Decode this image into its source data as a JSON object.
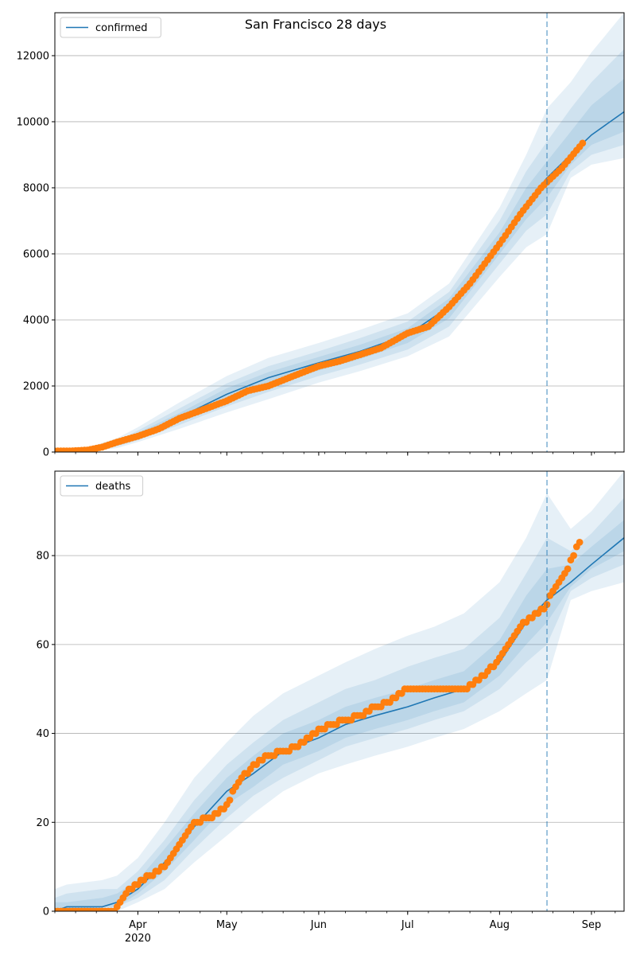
{
  "title": "San Francisco 28 days",
  "colors": {
    "line": "#1f77b4",
    "band": "#1f77b4",
    "observed": "#ff7f0e",
    "grid": "#b0b0b0"
  },
  "x_axis": {
    "tick_labels": [
      "Apr",
      "May",
      "Jun",
      "Jul",
      "Aug",
      "Sep"
    ],
    "tick_dates": [
      "2020-04-01",
      "2020-05-01",
      "2020-06-01",
      "2020-07-01",
      "2020-08-01",
      "2020-09-01"
    ],
    "year_label": "2020",
    "range": [
      "2020-03-04",
      "2020-09-12"
    ]
  },
  "chart_data": [
    {
      "type": "line",
      "legend_placement": "top-left",
      "legend": "confirmed",
      "ylim": [
        0,
        13300
      ],
      "yticks": [
        0,
        2000,
        4000,
        6000,
        8000,
        10000,
        12000
      ],
      "grid": "horizontal",
      "forecast_start": "2020-08-17",
      "median": {
        "x": [
          "2020-03-04",
          "2020-03-15",
          "2020-03-25",
          "2020-04-01",
          "2020-04-15",
          "2020-05-01",
          "2020-05-15",
          "2020-06-01",
          "2020-06-15",
          "2020-07-01",
          "2020-07-15",
          "2020-08-01",
          "2020-08-10",
          "2020-08-17",
          "2020-08-25",
          "2020-09-01",
          "2020-09-12"
        ],
        "y": [
          20,
          60,
          250,
          500,
          1050,
          1750,
          2250,
          2700,
          3050,
          3550,
          4400,
          6300,
          7500,
          8300,
          9000,
          9600,
          10300
        ]
      },
      "bands": [
        {
          "lower": [
            0,
            10,
            120,
            300,
            700,
            1200,
            1600,
            2100,
            2450,
            2900,
            3500,
            5300,
            6200,
            6600,
            8300,
            8700,
            8900
          ],
          "upper": [
            60,
            140,
            420,
            750,
            1500,
            2300,
            2850,
            3300,
            3700,
            4200,
            5100,
            7400,
            9000,
            10400,
            11200,
            12100,
            13300
          ]
        },
        {
          "lower": [
            5,
            25,
            170,
            360,
            820,
            1380,
            1820,
            2300,
            2650,
            3100,
            3800,
            5700,
            6700,
            7200,
            8500,
            9000,
            9300
          ],
          "upper": [
            45,
            110,
            340,
            650,
            1320,
            2080,
            2600,
            3050,
            3450,
            3950,
            4850,
            7000,
            8500,
            9400,
            10400,
            11200,
            12200
          ]
        },
        {
          "lower": [
            10,
            40,
            210,
            420,
            920,
            1530,
            2000,
            2470,
            2820,
            3300,
            4050,
            6000,
            7050,
            7700,
            8700,
            9300,
            9700
          ],
          "upper": [
            35,
            85,
            290,
            580,
            1180,
            1930,
            2420,
            2880,
            3250,
            3750,
            4650,
            6650,
            8000,
            8800,
            9700,
            10500,
            11300
          ]
        }
      ],
      "observed": {
        "x": [
          "2020-03-04",
          "2020-03-10",
          "2020-03-15",
          "2020-03-20",
          "2020-03-25",
          "2020-04-01",
          "2020-04-08",
          "2020-04-15",
          "2020-04-22",
          "2020-05-01",
          "2020-05-08",
          "2020-05-15",
          "2020-05-22",
          "2020-06-01",
          "2020-06-08",
          "2020-06-15",
          "2020-06-22",
          "2020-07-01",
          "2020-07-08",
          "2020-07-15",
          "2020-07-22",
          "2020-08-01",
          "2020-08-08",
          "2020-08-15",
          "2020-08-22",
          "2020-08-29"
        ],
        "y": [
          30,
          35,
          60,
          150,
          300,
          480,
          700,
          1020,
          1250,
          1550,
          1850,
          2000,
          2250,
          2600,
          2750,
          2950,
          3150,
          3600,
          3800,
          4400,
          5100,
          6300,
          7200,
          8000,
          8600,
          9350
        ]
      }
    },
    {
      "type": "line",
      "legend_placement": "top-left",
      "legend": "deaths",
      "ylim": [
        0,
        99
      ],
      "yticks": [
        0,
        20,
        40,
        60,
        80
      ],
      "grid": "horizontal",
      "forecast_start": "2020-08-17",
      "median": {
        "x": [
          "2020-03-04",
          "2020-03-08",
          "2020-03-20",
          "2020-03-25",
          "2020-04-01",
          "2020-04-10",
          "2020-04-20",
          "2020-05-01",
          "2020-05-10",
          "2020-05-20",
          "2020-06-01",
          "2020-06-10",
          "2020-06-20",
          "2020-07-01",
          "2020-07-10",
          "2020-07-20",
          "2020-08-01",
          "2020-08-10",
          "2020-08-17",
          "2020-08-25",
          "2020-09-01",
          "2020-09-12"
        ],
        "y": [
          0,
          1,
          1,
          2,
          5,
          11,
          19,
          27,
          31,
          36,
          39,
          42,
          44,
          46,
          48,
          50,
          56,
          65,
          70,
          74,
          78,
          84
        ]
      },
      "bands": [
        {
          "lower": [
            0,
            0,
            0,
            0,
            2,
            5,
            11,
            17,
            22,
            27,
            31,
            33,
            35,
            37,
            39,
            41,
            45,
            49,
            52,
            70,
            72,
            74
          ],
          "upper": [
            5,
            6,
            7,
            8,
            12,
            20,
            30,
            38,
            44,
            49,
            53,
            56,
            59,
            62,
            64,
            67,
            74,
            84,
            94,
            86,
            90,
            99
          ]
        },
        {
          "lower": [
            0,
            0,
            0,
            1,
            3,
            7,
            14,
            21,
            26,
            30,
            34,
            37,
            39,
            41,
            43,
            45,
            50,
            56,
            60,
            72,
            75,
            78
          ],
          "upper": [
            3,
            4,
            5,
            5,
            9,
            16,
            25,
            33,
            38,
            43,
            47,
            50,
            52,
            55,
            57,
            59,
            66,
            76,
            84,
            81,
            85,
            93
          ]
        },
        {
          "lower": [
            0,
            0,
            1,
            1,
            4,
            9,
            16,
            24,
            28,
            33,
            36,
            39,
            41,
            43,
            45,
            47,
            53,
            60,
            65,
            73,
            77,
            81
          ],
          "upper": [
            2,
            2,
            3,
            4,
            7,
            14,
            22,
            30,
            35,
            40,
            43,
            46,
            48,
            50,
            52,
            54,
            61,
            71,
            77,
            78,
            82,
            88
          ]
        }
      ],
      "observed": {
        "x": [
          "2020-03-04",
          "2020-03-15",
          "2020-03-24",
          "2020-03-28",
          "2020-04-01",
          "2020-04-05",
          "2020-04-10",
          "2020-04-15",
          "2020-04-20",
          "2020-04-25",
          "2020-04-30",
          "2020-05-05",
          "2020-05-10",
          "2020-05-15",
          "2020-05-20",
          "2020-05-25",
          "2020-05-30",
          "2020-06-05",
          "2020-06-10",
          "2020-06-15",
          "2020-06-20",
          "2020-06-25",
          "2020-07-01",
          "2020-07-10",
          "2020-07-20",
          "2020-07-25",
          "2020-07-31",
          "2020-08-05",
          "2020-08-08",
          "2020-08-14",
          "2020-08-17",
          "2020-08-19",
          "2020-08-21",
          "2020-08-24",
          "2020-08-26",
          "2020-08-28"
        ],
        "y": [
          0,
          0,
          0,
          4,
          6,
          8,
          10,
          15,
          20,
          21,
          23,
          29,
          33,
          35,
          36,
          37,
          40,
          42,
          43,
          44,
          46,
          47,
          50,
          50,
          50,
          52,
          56,
          61,
          64,
          67,
          69,
          72,
          74,
          77,
          80,
          83
        ]
      }
    }
  ]
}
